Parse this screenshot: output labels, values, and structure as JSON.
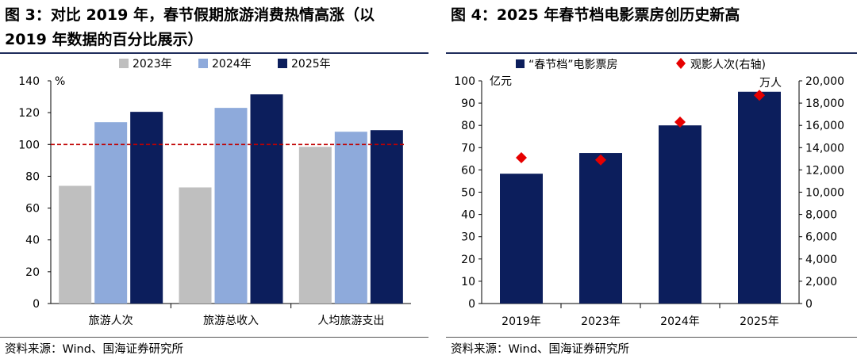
{
  "left_panel": {
    "title": "图 3：对比 2019 年，春节假期旅游消费热情高涨（以\n2019 年数据的百分比展示）",
    "source": "资料来源：Wind、国海证券研究所"
  },
  "right_panel": {
    "title": "图 4：2025 年春节档电影票房创历史新高",
    "source": "资料来源：Wind、国海证券研究所"
  },
  "chart_data": [
    {
      "type": "bar",
      "title": "",
      "ylabel": "%",
      "categories": [
        "旅游人次",
        "旅游总收入",
        "人均旅游支出"
      ],
      "series": [
        {
          "name": "2023年",
          "color": "#bfbfbf",
          "values": [
            74,
            73,
            98.5
          ]
        },
        {
          "name": "2024年",
          "color": "#8eaadb",
          "values": [
            114,
            123,
            108
          ]
        },
        {
          "name": "2025年",
          "color": "#0c1e5c",
          "values": [
            120.5,
            131.5,
            109
          ]
        }
      ],
      "ylim": [
        0,
        140
      ],
      "yticks": [
        0,
        20,
        40,
        60,
        80,
        100,
        120,
        140
      ],
      "reference_line": {
        "value": 100,
        "color": "#c00000",
        "style": "dashed"
      },
      "legend_position": "top-center",
      "grid": false
    },
    {
      "type": "bar",
      "title": "",
      "categories": [
        "2019年",
        "2023年",
        "2024年",
        "2025年"
      ],
      "series": [
        {
          "name": "“春节档”电影票房",
          "color": "#0c1e5c",
          "kind": "bar",
          "axis": "left",
          "values": [
            58.3,
            67.6,
            80.0,
            95.1
          ]
        },
        {
          "name": "观影人次(右轴)",
          "color": "#e60000",
          "kind": "marker-diamond",
          "axis": "right",
          "values": [
            13100,
            12900,
            16300,
            18700
          ]
        }
      ],
      "ylabel": "亿元",
      "ylim": [
        0,
        100
      ],
      "yticks": [
        0,
        10,
        20,
        30,
        40,
        50,
        60,
        70,
        80,
        90,
        100
      ],
      "y2label": "万人",
      "y2lim": [
        0,
        20000
      ],
      "y2ticks": [
        "0",
        "2,000",
        "4,000",
        "6,000",
        "8,000",
        "10,000",
        "12,000",
        "14,000",
        "16,000",
        "18,000",
        "20,000"
      ],
      "legend_position": "top-center",
      "grid": false
    }
  ]
}
